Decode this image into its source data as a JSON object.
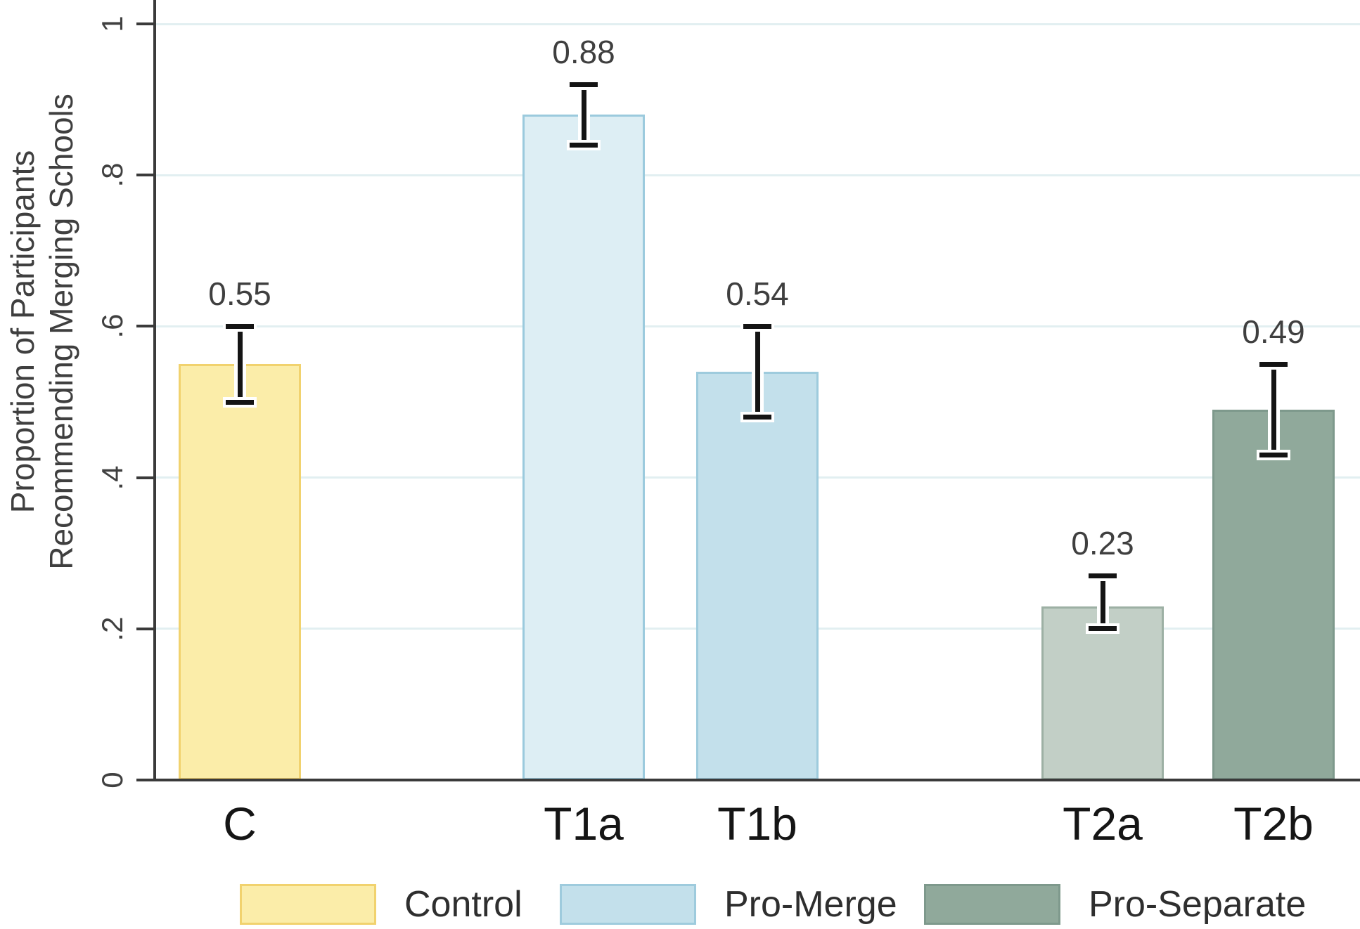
{
  "chart_data": {
    "type": "bar",
    "title": "",
    "xlabel": "",
    "ylabel_lines": [
      "Proportion of Participants",
      "Recommending Merging Schools"
    ],
    "categories": [
      "C",
      "T1a",
      "T1b",
      "T2a",
      "T2b"
    ],
    "values": [
      0.55,
      0.88,
      0.54,
      0.23,
      0.49
    ],
    "value_labels": [
      "0.55",
      "0.88",
      "0.54",
      "0.23",
      "0.49"
    ],
    "ci_low": [
      0.5,
      0.84,
      0.48,
      0.2,
      0.43
    ],
    "ci_high": [
      0.6,
      0.92,
      0.6,
      0.27,
      0.55
    ],
    "bar_series": [
      "Control",
      "Pro-Merge",
      "Pro-Merge",
      "Pro-Separate",
      "Pro-Separate"
    ],
    "bar_colors": [
      {
        "fill": "#fbeda9",
        "border": "#f1d26e"
      },
      {
        "fill": "#ddeef4",
        "border": "#9bcadd"
      },
      {
        "fill": "#c3e0eb",
        "border": "#9ecbdd"
      },
      {
        "fill": "#c2cfc6",
        "border": "#9db0a4"
      },
      {
        "fill": "#90a99b",
        "border": "#7e998c"
      }
    ],
    "ylim": [
      0,
      1
    ],
    "yticks": [
      {
        "value": 0,
        "label": "0"
      },
      {
        "value": 0.2,
        "label": ".2"
      },
      {
        "value": 0.4,
        "label": ".4"
      },
      {
        "value": 0.6,
        "label": ".6"
      },
      {
        "value": 0.8,
        "label": ".8"
      },
      {
        "value": 1,
        "label": "1"
      }
    ],
    "grid": "horizontal gridlines at y ticks, light blue, shown from .2 to 1",
    "error_bars": "black capped 95% confidence intervals on every bar",
    "legend": {
      "position": "bottom",
      "items": [
        {
          "label": "Control",
          "fill": "#fbeda9",
          "border": "#f1d26e"
        },
        {
          "label": "Pro-Merge",
          "fill": "#c3e0eb",
          "border": "#9ecbdd"
        },
        {
          "label": "Pro-Separate",
          "fill": "#90a99b",
          "border": "#7e998c"
        }
      ]
    }
  },
  "colors": {
    "background": "#ffffff",
    "axis": "#3a3a3a",
    "gridline": "#e2eff1",
    "tick_label": "#404040",
    "value_label": "#3f3f3f",
    "x_label": "#151515",
    "error_bar": "#141414"
  }
}
